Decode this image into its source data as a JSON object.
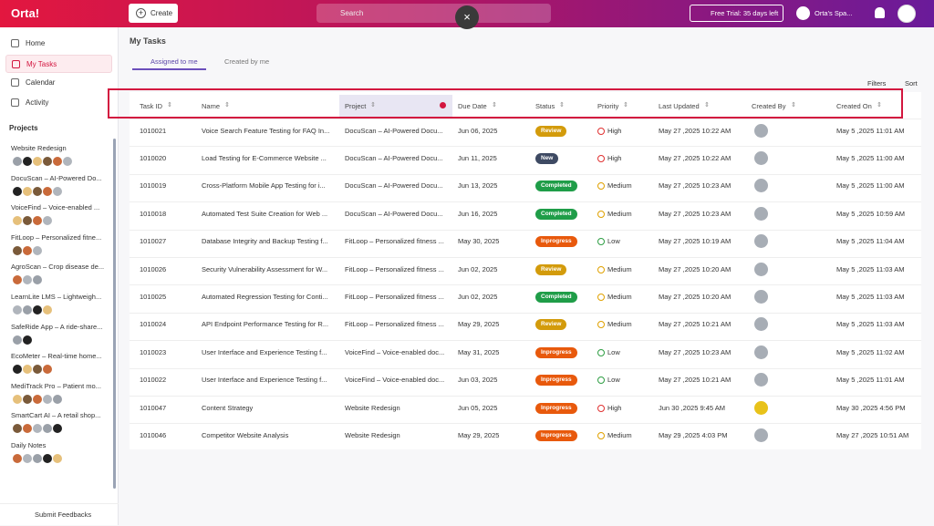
{
  "header": {
    "brand": "Orta!",
    "create": "Create",
    "search": "Search",
    "trial": "Free Trial: 35 days left",
    "workspace": "Orta's Spa..."
  },
  "sidebar": {
    "nav": [
      "Home",
      "My Tasks",
      "Calendar",
      "Activity"
    ],
    "projects_title": "Projects",
    "projects": [
      "Website Redesign",
      "DocuScan – AI-Powered Do...",
      "VoiceFind – Voice-enabled ...",
      "FitLoop – Personalized fitne...",
      "AgroScan – Crop disease de...",
      "LearnLite LMS – Lightweigh...",
      "SafeRide App – A ride-share...",
      "EcoMeter – Real-time home...",
      "MediTrack Pro – Patient mo...",
      "SmartCart AI – A retail shop...",
      "Daily Notes"
    ],
    "feedback": "Submit Feedbacks"
  },
  "main": {
    "title": "My Tasks",
    "tabs": [
      "Assigned to me",
      "Created by me"
    ],
    "filters": "Filters",
    "sort": "Sort",
    "columns": [
      "Task ID",
      "Name",
      "Project",
      "Due Date",
      "Status",
      "Priority",
      "Last Updated",
      "Created By",
      "Created On"
    ],
    "status_colors": {
      "Review": "#d39b0b",
      "New": "#3e4a63",
      "Completed": "#1f9d48",
      "Inprogress": "#e8590c"
    },
    "priority_colors": {
      "High": "#e03131",
      "Medium": "#e0a100",
      "Low": "#2f9e44"
    },
    "rows": [
      {
        "id": "1010021",
        "name": "Voice Search Feature Testing for FAQ In...",
        "project": "DocuScan – AI-Powered Docu...",
        "due": "Jun 06, 2025",
        "status": "Review",
        "priority": "High",
        "updated": "May 27 ,2025 10:22 AM",
        "created": "May 5 ,2025 11:01 AM"
      },
      {
        "id": "1010020",
        "name": "Load Testing for E-Commerce Website ...",
        "project": "DocuScan – AI-Powered Docu...",
        "due": "Jun 11, 2025",
        "status": "New",
        "priority": "High",
        "updated": "May 27 ,2025 10:22 AM",
        "created": "May 5 ,2025 11:00 AM"
      },
      {
        "id": "1010019",
        "name": "Cross-Platform Mobile App Testing for i...",
        "project": "DocuScan – AI-Powered Docu...",
        "due": "Jun 13, 2025",
        "status": "Completed",
        "priority": "Medium",
        "updated": "May 27 ,2025 10:23 AM",
        "created": "May 5 ,2025 11:00 AM"
      },
      {
        "id": "1010018",
        "name": "Automated Test Suite Creation for Web ...",
        "project": "DocuScan – AI-Powered Docu...",
        "due": "Jun 16, 2025",
        "status": "Completed",
        "priority": "Medium",
        "updated": "May 27 ,2025 10:23 AM",
        "created": "May 5 ,2025 10:59 AM"
      },
      {
        "id": "1010027",
        "name": "Database Integrity and Backup Testing f...",
        "project": "FitLoop – Personalized fitness ...",
        "due": "May 30, 2025",
        "status": "Inprogress",
        "priority": "Low",
        "updated": "May 27 ,2025 10:19 AM",
        "created": "May 5 ,2025 11:04 AM"
      },
      {
        "id": "1010026",
        "name": "Security Vulnerability Assessment for W...",
        "project": "FitLoop – Personalized fitness ...",
        "due": "Jun 02, 2025",
        "status": "Review",
        "priority": "Medium",
        "updated": "May 27 ,2025 10:20 AM",
        "created": "May 5 ,2025 11:03 AM"
      },
      {
        "id": "1010025",
        "name": "Automated Regression Testing for Conti...",
        "project": "FitLoop – Personalized fitness ...",
        "due": "Jun 02, 2025",
        "status": "Completed",
        "priority": "Medium",
        "updated": "May 27 ,2025 10:20 AM",
        "created": "May 5 ,2025 11:03 AM"
      },
      {
        "id": "1010024",
        "name": "API Endpoint Performance Testing for R...",
        "project": "FitLoop – Personalized fitness ...",
        "due": "May 29, 2025",
        "status": "Review",
        "priority": "Medium",
        "updated": "May 27 ,2025 10:21 AM",
        "created": "May 5 ,2025 11:03 AM"
      },
      {
        "id": "1010023",
        "name": "User Interface and Experience Testing f...",
        "project": "VoiceFind – Voice-enabled doc...",
        "due": "May 31, 2025",
        "status": "Inprogress",
        "priority": "Low",
        "updated": "May 27 ,2025 10:23 AM",
        "created": "May 5 ,2025 11:02 AM"
      },
      {
        "id": "1010022",
        "name": "User Interface and Experience Testing f...",
        "project": "VoiceFind – Voice-enabled doc...",
        "due": "Jun 03, 2025",
        "status": "Inprogress",
        "priority": "Low",
        "updated": "May 27 ,2025 10:21 AM",
        "created": "May 5 ,2025 11:01 AM"
      },
      {
        "id": "1010047",
        "name": "Content Strategy",
        "project": "Website Redesign",
        "due": "Jun 05, 2025",
        "status": "Inprogress",
        "priority": "High",
        "updated": "Jun 30 ,2025 9:45 AM",
        "created": "May 30 ,2025 4:56 PM"
      },
      {
        "id": "1010046",
        "name": "Competitor Website Analysis",
        "project": "Website Redesign",
        "due": "May 29, 2025",
        "status": "Inprogress",
        "priority": "Medium",
        "updated": "May 29 ,2025 4:03 PM",
        "created": "May 27 ,2025 10:51 AM"
      }
    ]
  }
}
